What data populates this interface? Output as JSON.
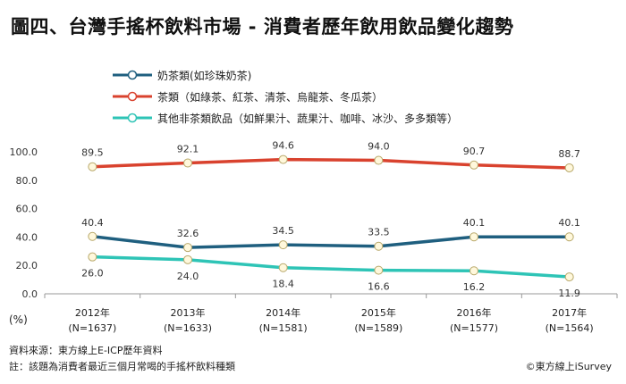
{
  "title": "圖四、台灣手搖杯飲料市場 - 消費者歷年飲用飲品變化趨勢",
  "footer": {
    "source": "資料來源：東方線上E-ICP歷年資料",
    "note": "註：該題為消費者最近三個月常喝的手搖杯飲料種類",
    "copyright": "©東方線上iSurvey"
  },
  "chart_data": {
    "type": "line",
    "ylabel": "(%)",
    "ylim": [
      0,
      100
    ],
    "yticks": [
      "0.0",
      "20.0",
      "40.0",
      "60.0",
      "80.0",
      "100.0"
    ],
    "grid": false,
    "legend_position": "top-left",
    "categories": [
      {
        "year": "2012年",
        "n": "(N=1637)"
      },
      {
        "year": "2013年",
        "n": "(N=1633)"
      },
      {
        "year": "2014年",
        "n": "(N=1581)"
      },
      {
        "year": "2015年",
        "n": "(N=1589)"
      },
      {
        "year": "2016年",
        "n": "(N=1577)"
      },
      {
        "year": "2017年",
        "n": "(N=1564)"
      }
    ],
    "series": [
      {
        "name": "奶茶類(如珍珠奶茶)",
        "color": "#1f5f7f",
        "values": [
          40.4,
          32.6,
          34.5,
          33.5,
          40.1,
          40.1
        ],
        "labels": [
          "40.4",
          "32.6",
          "34.5",
          "33.5",
          "40.1",
          "40.1"
        ],
        "label_side": "above"
      },
      {
        "name": "茶類（如綠茶、紅茶、清茶、烏龍茶、冬瓜茶）",
        "color": "#d9422e",
        "values": [
          89.5,
          92.1,
          94.6,
          94.0,
          90.7,
          88.7
        ],
        "labels": [
          "89.5",
          "92.1",
          "94.6",
          "94.0",
          "90.7",
          "88.7"
        ],
        "label_side": "above"
      },
      {
        "name": "其他非茶類飲品（如鮮果汁、蔬果汁、咖啡、冰沙、多多類等）",
        "color": "#2ec4b6",
        "values": [
          26.0,
          24.0,
          18.4,
          16.6,
          16.2,
          11.9
        ],
        "labels": [
          "26.0",
          "24.0",
          "18.4",
          "16.6",
          "16.2",
          "11.9"
        ],
        "label_side": "below"
      }
    ]
  }
}
